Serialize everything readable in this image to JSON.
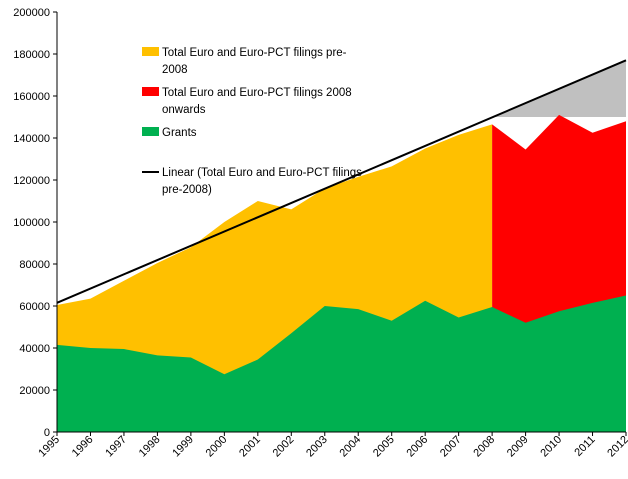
{
  "chart_data": {
    "type": "area",
    "title": "",
    "xlabel": "",
    "ylabel": "",
    "ylim": [
      0,
      200000
    ],
    "yticks": [
      "0",
      "20000",
      "40000",
      "60000",
      "80000",
      "100000",
      "120000",
      "140000",
      "160000",
      "180000",
      "200000"
    ],
    "ytick_values": [
      0,
      20000,
      40000,
      60000,
      80000,
      100000,
      120000,
      140000,
      160000,
      180000,
      200000
    ],
    "categories": [
      "1995",
      "1996",
      "1997",
      "1998",
      "1999",
      "2000",
      "2001",
      "2002",
      "2003",
      "2004",
      "2005",
      "2006",
      "2007",
      "2008",
      "2009",
      "2010",
      "2011",
      "2012"
    ],
    "series": [
      {
        "name": "Total Euro and Euro-PCT filings pre-2008",
        "color": "#ffc000",
        "values": [
          60500,
          63500,
          72000,
          80500,
          88000,
          100000,
          110000,
          106000,
          116000,
          121500,
          126500,
          135000,
          141500,
          146500,
          null,
          null,
          null,
          null
        ]
      },
      {
        "name": "Total Euro and Euro-PCT filings 2008 onwards",
        "color": "#ff0000",
        "values": [
          null,
          null,
          null,
          null,
          null,
          null,
          null,
          null,
          null,
          null,
          null,
          null,
          null,
          146500,
          134500,
          151000,
          142500,
          148000
        ]
      },
      {
        "name": "Grants",
        "color": "#00b050",
        "values": [
          41500,
          40000,
          39500,
          36500,
          35500,
          27500,
          34500,
          47000,
          60000,
          58500,
          53000,
          62500,
          54500,
          59500,
          52000,
          57500,
          61500,
          65000
        ]
      },
      {
        "name": "Linear (Total Euro and Euro-PCT filings pre-2008)",
        "color": "#000000",
        "type": "trendline",
        "start": [
          1995,
          61500
        ],
        "end": [
          2012,
          177000
        ]
      }
    ],
    "gap_region": {
      "color": "#c0c0c0",
      "description": "shaded area between trend line and 150000 from 2008 onwards",
      "baseline": 150000
    },
    "legend": {
      "placement": "top-center",
      "entries": [
        {
          "label": "Total Euro and Euro-PCT filings pre-2008",
          "lines": [
            "Total Euro and Euro-PCT filings pre-",
            "2008"
          ],
          "color": "#ffc000",
          "kind": "area"
        },
        {
          "label": "Total Euro and Euro-PCT filings 2008 onwards",
          "lines": [
            "Total Euro and Euro-PCT filings 2008",
            "onwards"
          ],
          "color": "#ff0000",
          "kind": "area"
        },
        {
          "label": "Grants",
          "lines": [
            "Grants"
          ],
          "color": "#00b050",
          "kind": "area"
        },
        {
          "label": "Linear (Total Euro and Euro-PCT filings pre-2008)",
          "lines": [
            "Linear (Total Euro and Euro-PCT filings",
            "pre-2008)"
          ],
          "color": "#000000",
          "kind": "line"
        }
      ]
    }
  }
}
